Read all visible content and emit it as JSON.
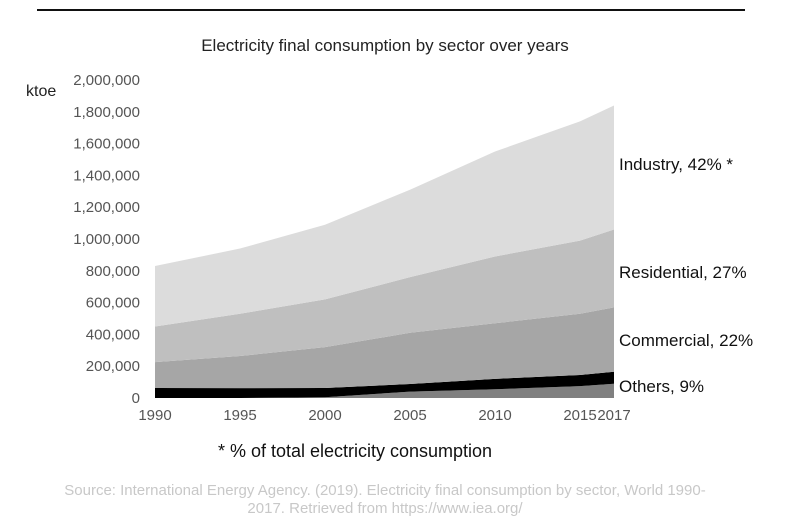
{
  "chart_data": {
    "type": "area",
    "stacked": true,
    "title": "Electricity final consumption by sector over years",
    "ylabel": "ktoe",
    "xlabel": "",
    "x": [
      1990,
      1995,
      2000,
      2005,
      2010,
      2015,
      2017
    ],
    "ylim": [
      0,
      2000000
    ],
    "yticks": [
      "0",
      "200,000",
      "400,000",
      "600,000",
      "800,000",
      "1,000,000",
      "1,200,000",
      "1,400,000",
      "1,600,000",
      "1,800,000",
      "2,000,000"
    ],
    "xticks": [
      "1990",
      "1995",
      "2000",
      "2005",
      "2010",
      "2015",
      "2017"
    ],
    "grid": false,
    "series": [
      {
        "values": [
          0,
          0,
          5000,
          40000,
          55000,
          75000,
          90000
        ],
        "color": "#808080"
      },
      {
        "values": [
          63000,
          62000,
          58000,
          48000,
          65000,
          70000,
          75000
        ],
        "color": "#000000"
      },
      {
        "values": [
          163000,
          202000,
          257000,
          322000,
          350000,
          385000,
          405000
        ],
        "color": "#a6a6a6"
      },
      {
        "values": [
          224000,
          266000,
          300000,
          350000,
          420000,
          460000,
          490000
        ],
        "color": "#bfbfbf"
      },
      {
        "values": [
          380000,
          410000,
          470000,
          550000,
          660000,
          750000,
          780000
        ],
        "color": "#dcdcdc"
      }
    ],
    "annotations": [
      "Industry, 42% *",
      "Residential, 27%",
      "Commercial, 22%",
      "Others, 9%"
    ],
    "footnote": "* % of total electricity consumption",
    "source_line1": "Source: International Energy Agency. (2019). Electricity final consumption by sector, World 1990-",
    "source_line2": "2017. Retrieved from https://www.iea.org/"
  }
}
